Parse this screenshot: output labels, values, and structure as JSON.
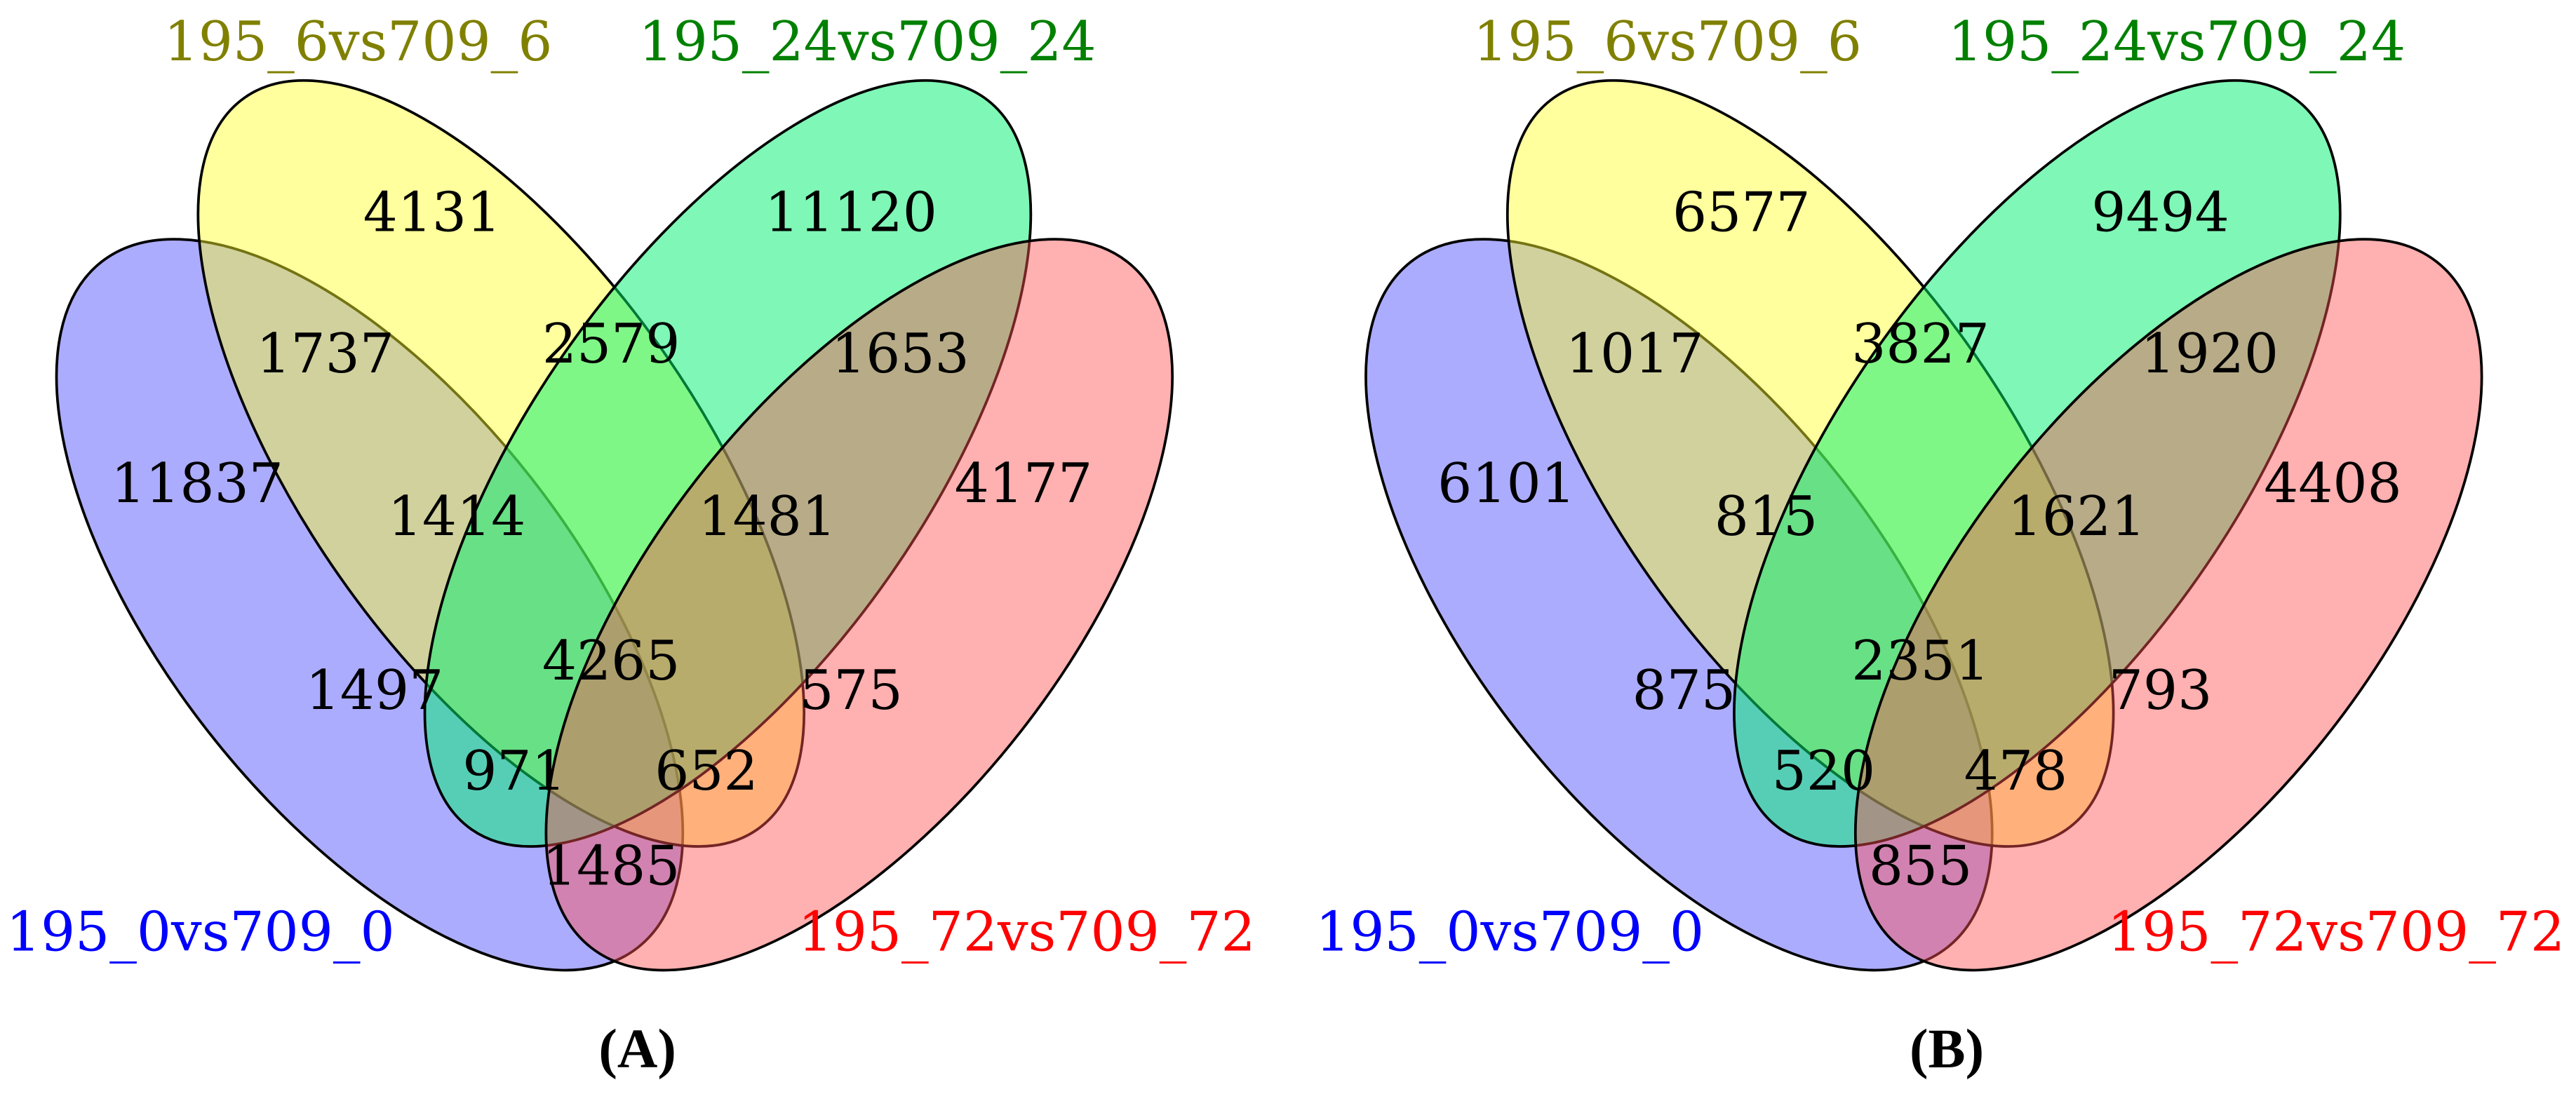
{
  "panels": [
    {
      "label": "(A)",
      "sets": [
        "195_0vs709_0",
        "195_6vs709_6",
        "195_24vs709_24",
        "195_72vs709_72"
      ],
      "counts": [
        4131,
        11120,
        1737,
        2579,
        1653,
        11837,
        1414,
        1481,
        4177,
        1497,
        4265,
        575,
        971,
        652,
        1485
      ]
    },
    {
      "label": "(B)",
      "sets": [
        "195_0vs709_0",
        "195_6vs709_6",
        "195_24vs709_24",
        "195_72vs709_72"
      ],
      "counts": [
        6577,
        9494,
        1017,
        3827,
        1920,
        6101,
        815,
        1621,
        4408,
        875,
        2351,
        793,
        520,
        478,
        855
      ]
    }
  ]
}
